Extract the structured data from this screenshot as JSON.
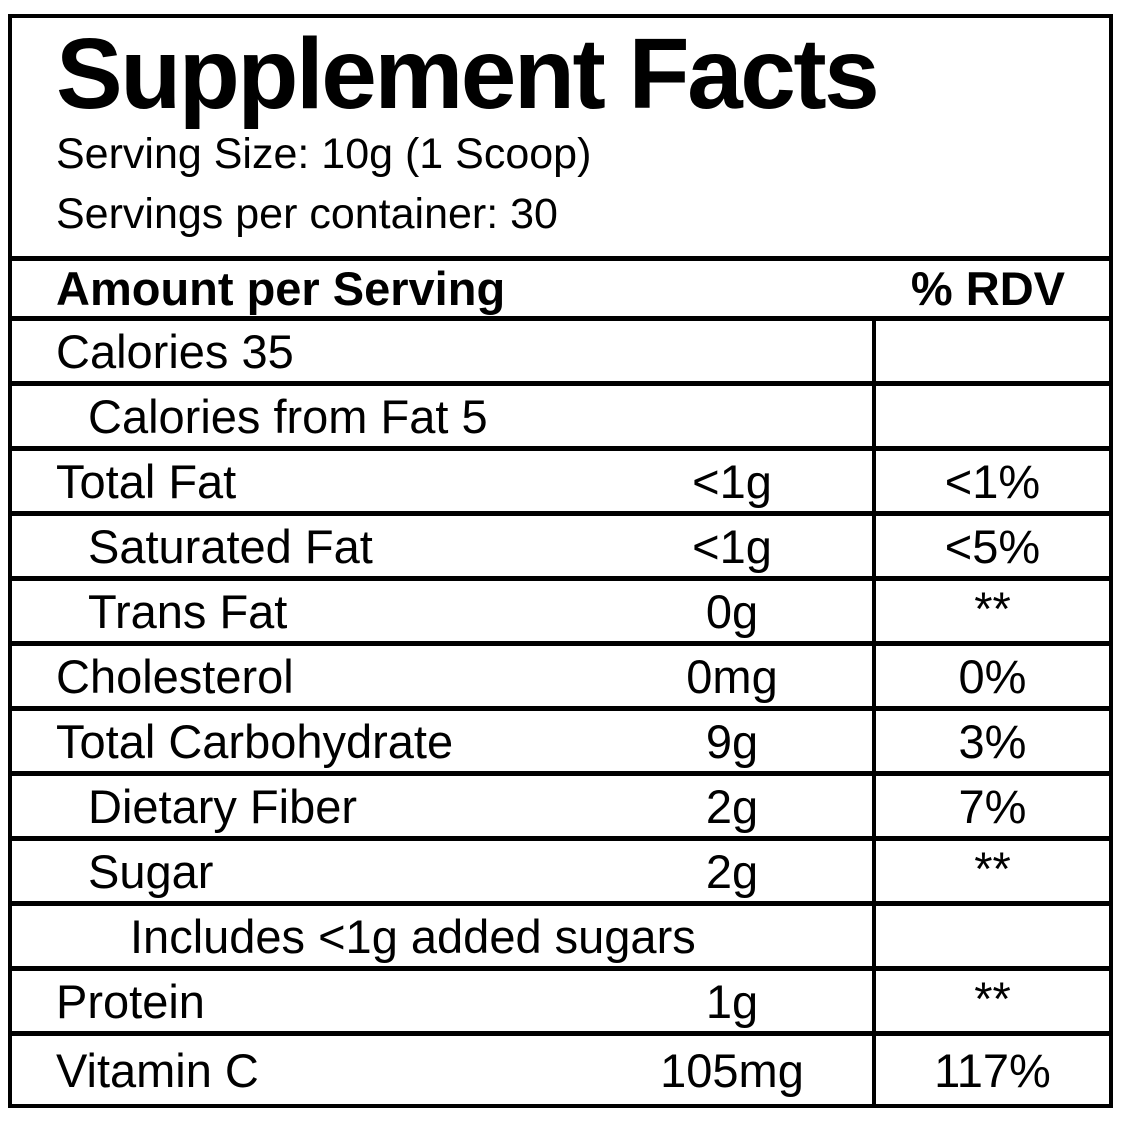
{
  "label": {
    "title": "Supplement Facts",
    "serving_size": "Serving Size: 10g (1 Scoop)",
    "servings_per_container": "Servings per container: 30",
    "columns": {
      "left": "Amount per Serving",
      "right": "% RDV"
    },
    "rows": [
      {
        "name": "Calories 35",
        "amount": "",
        "rdv": "",
        "indent": 0,
        "rdv_sup": false
      },
      {
        "name": "Calories from Fat 5",
        "amount": "",
        "rdv": "",
        "indent": 1,
        "rdv_sup": false
      },
      {
        "name": "Total Fat",
        "amount": "<1g",
        "rdv": "<1%",
        "indent": 0,
        "rdv_sup": false
      },
      {
        "name": "Saturated Fat",
        "amount": "<1g",
        "rdv": "<5%",
        "indent": 1,
        "rdv_sup": false
      },
      {
        "name": "Trans Fat",
        "amount": "0g",
        "rdv": "**",
        "indent": 1,
        "rdv_sup": true
      },
      {
        "name": "Cholesterol",
        "amount": "0mg",
        "rdv": "0%",
        "indent": 0,
        "rdv_sup": false
      },
      {
        "name": "Total Carbohydrate",
        "amount": "9g",
        "rdv": "3%",
        "indent": 0,
        "rdv_sup": false
      },
      {
        "name": "Dietary Fiber",
        "amount": "2g",
        "rdv": "7%",
        "indent": 1,
        "rdv_sup": false
      },
      {
        "name": "Sugar",
        "amount": "2g",
        "rdv": "**",
        "indent": 1,
        "rdv_sup": true
      },
      {
        "name": "Includes <1g added sugars",
        "amount": "",
        "rdv": "",
        "indent": 2,
        "rdv_sup": false
      },
      {
        "name": "Protein",
        "amount": "1g",
        "rdv": "**",
        "indent": 0,
        "rdv_sup": true
      },
      {
        "name": "Vitamin C",
        "amount": "105mg",
        "rdv": "117%",
        "indent": 0,
        "rdv_sup": false
      }
    ],
    "colors": {
      "text": "#000000",
      "border": "#000000",
      "background": "#ffffff"
    }
  }
}
